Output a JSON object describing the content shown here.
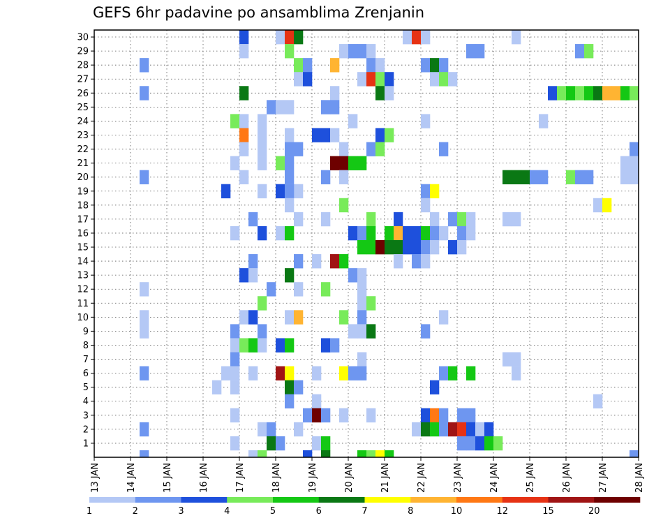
{
  "chart_data": {
    "type": "heatmap",
    "title": "GEFS 6hr padavine po ansamblima Zrenjanin",
    "xlabel": "",
    "ylabel": "",
    "x_tick_labels": [
      "13 JAN",
      "14 JAN",
      "15 JAN",
      "16 JAN",
      "17 JAN",
      "18 JAN",
      "19 JAN",
      "20 JAN",
      "21 JAN",
      "22 JAN",
      "23 JAN",
      "24 JAN",
      "25 JAN",
      "26 JAN",
      "27 JAN",
      "28 JAN"
    ],
    "y_tick_labels": [
      "1",
      "2",
      "3",
      "4",
      "5",
      "6",
      "7",
      "8",
      "9",
      "10",
      "11",
      "12",
      "13",
      "14",
      "15",
      "16",
      "17",
      "18",
      "19",
      "20",
      "21",
      "22",
      "23",
      "24",
      "25",
      "26",
      "27",
      "28",
      "29",
      "30"
    ],
    "time_steps_per_day": 4,
    "members": 30,
    "colorbar": {
      "labels": [
        "1",
        "2",
        "3",
        "4",
        "5",
        "6",
        "7",
        "8",
        "10",
        "12",
        "15",
        "20"
      ],
      "colors": [
        "#b4c8f5",
        "#6e96f0",
        "#1e50dc",
        "#78eb5a",
        "#14c814",
        "#0a7814",
        "#ffff00",
        "#ffb432",
        "#ff7814",
        "#e63214",
        "#a01414",
        "#6e0000"
      ]
    },
    "cells": [
      [
        17,
        30,
        3
      ],
      [
        18,
        30,
        1
      ],
      [
        18.25,
        30,
        10
      ],
      [
        18.5,
        30,
        6
      ],
      [
        21.5,
        30,
        1
      ],
      [
        21.75,
        30,
        10
      ],
      [
        22,
        30,
        1
      ],
      [
        24.5,
        30,
        1
      ],
      [
        17,
        29,
        1
      ],
      [
        18.25,
        29,
        4
      ],
      [
        19.75,
        29,
        1
      ],
      [
        20,
        29,
        2
      ],
      [
        20.25,
        29,
        2
      ],
      [
        20.5,
        29,
        1
      ],
      [
        23.25,
        29,
        2
      ],
      [
        23.5,
        29,
        2
      ],
      [
        26.25,
        29,
        2
      ],
      [
        26.5,
        29,
        4
      ],
      [
        14.25,
        28,
        2
      ],
      [
        18.5,
        28,
        4
      ],
      [
        18.75,
        28,
        2
      ],
      [
        19.5,
        28,
        8
      ],
      [
        20.5,
        28,
        2
      ],
      [
        20.75,
        28,
        1
      ],
      [
        22,
        28,
        2
      ],
      [
        22.25,
        28,
        6
      ],
      [
        22.5,
        28,
        2
      ],
      [
        18.5,
        27,
        1
      ],
      [
        18.75,
        27,
        3
      ],
      [
        20.25,
        27,
        1
      ],
      [
        20.5,
        27,
        10
      ],
      [
        20.75,
        27,
        4
      ],
      [
        21,
        27,
        3
      ],
      [
        22.25,
        27,
        1
      ],
      [
        22.5,
        27,
        4
      ],
      [
        22.75,
        27,
        1
      ],
      [
        14.25,
        26,
        2
      ],
      [
        17,
        26,
        6
      ],
      [
        19.5,
        26,
        1
      ],
      [
        20.75,
        26,
        6
      ],
      [
        21,
        26,
        1
      ],
      [
        25.5,
        26,
        3
      ],
      [
        25.75,
        26,
        4
      ],
      [
        26,
        26,
        5
      ],
      [
        26.25,
        26,
        4
      ],
      [
        26.5,
        26,
        5
      ],
      [
        26.75,
        26,
        6
      ],
      [
        27,
        26,
        8
      ],
      [
        27.25,
        26,
        8
      ],
      [
        27.5,
        26,
        5
      ],
      [
        27.75,
        26,
        4
      ],
      [
        28,
        26,
        11
      ],
      [
        17.75,
        25,
        2
      ],
      [
        18,
        25,
        1
      ],
      [
        18.25,
        25,
        1
      ],
      [
        19.25,
        25,
        2
      ],
      [
        19.5,
        25,
        2
      ],
      [
        16.75,
        24,
        4
      ],
      [
        17,
        24,
        1
      ],
      [
        17.5,
        24,
        1
      ],
      [
        20,
        24,
        1
      ],
      [
        22,
        24,
        1
      ],
      [
        25.25,
        24,
        1
      ],
      [
        17,
        23,
        9
      ],
      [
        17.5,
        23,
        1
      ],
      [
        18.25,
        23,
        1
      ],
      [
        19,
        23,
        3
      ],
      [
        19.25,
        23,
        3
      ],
      [
        19.5,
        23,
        1
      ],
      [
        20.75,
        23,
        3
      ],
      [
        21,
        23,
        4
      ],
      [
        17,
        22,
        1
      ],
      [
        17.5,
        22,
        1
      ],
      [
        18.25,
        22,
        2
      ],
      [
        18.5,
        22,
        2
      ],
      [
        19.75,
        22,
        1
      ],
      [
        20.5,
        22,
        2
      ],
      [
        20.75,
        22,
        4
      ],
      [
        22.5,
        22,
        2
      ],
      [
        27.75,
        22,
        2
      ],
      [
        28,
        22,
        6
      ],
      [
        28.25,
        22,
        1
      ],
      [
        16.75,
        21,
        1
      ],
      [
        17.5,
        21,
        1
      ],
      [
        18,
        21,
        4
      ],
      [
        18.25,
        21,
        2
      ],
      [
        19.5,
        21,
        12
      ],
      [
        19.75,
        21,
        12
      ],
      [
        20,
        21,
        5
      ],
      [
        20.25,
        21,
        5
      ],
      [
        27.5,
        21,
        1
      ],
      [
        27.75,
        21,
        1
      ],
      [
        28.25,
        21,
        1
      ],
      [
        14.25,
        20,
        2
      ],
      [
        17,
        20,
        1
      ],
      [
        18.25,
        20,
        2
      ],
      [
        19.25,
        20,
        2
      ],
      [
        19.75,
        20,
        1
      ],
      [
        24.25,
        20,
        6
      ],
      [
        24.5,
        20,
        6
      ],
      [
        24.75,
        20,
        6
      ],
      [
        25,
        20,
        2
      ],
      [
        25.25,
        20,
        2
      ],
      [
        26,
        20,
        4
      ],
      [
        26.25,
        20,
        2
      ],
      [
        26.5,
        20,
        2
      ],
      [
        27.5,
        20,
        1
      ],
      [
        27.75,
        20,
        1
      ],
      [
        16.5,
        19,
        3
      ],
      [
        17.5,
        19,
        1
      ],
      [
        18,
        19,
        3
      ],
      [
        18.25,
        19,
        1
      ],
      [
        18.5,
        19,
        1
      ],
      [
        18.25,
        19.01,
        2
      ],
      [
        22,
        19,
        2
      ],
      [
        22.25,
        19,
        7
      ],
      [
        18.25,
        18,
        1
      ],
      [
        19.75,
        18,
        4
      ],
      [
        22,
        18,
        1
      ],
      [
        26.75,
        18,
        1
      ],
      [
        27,
        18,
        7
      ],
      [
        28,
        18,
        1
      ],
      [
        28.25,
        18,
        1
      ],
      [
        17.25,
        17,
        2
      ],
      [
        18.5,
        17,
        1
      ],
      [
        19.25,
        17,
        1
      ],
      [
        20.5,
        17,
        4
      ],
      [
        21.25,
        17,
        3
      ],
      [
        22.25,
        17,
        1
      ],
      [
        22.75,
        17,
        2
      ],
      [
        23,
        17,
        4
      ],
      [
        23.25,
        17,
        1
      ],
      [
        24.25,
        17,
        1
      ],
      [
        24.5,
        17,
        1
      ],
      [
        16.75,
        16,
        1
      ],
      [
        17.5,
        16,
        3
      ],
      [
        18,
        16,
        1
      ],
      [
        18.25,
        16,
        5
      ],
      [
        20,
        16,
        3
      ],
      [
        20.25,
        16,
        2
      ],
      [
        20.5,
        16,
        5
      ],
      [
        21,
        16,
        5
      ],
      [
        21.25,
        16,
        8
      ],
      [
        21.5,
        16,
        3
      ],
      [
        21.75,
        16,
        3
      ],
      [
        22,
        16,
        5
      ],
      [
        22.25,
        16,
        2
      ],
      [
        22.5,
        16,
        1
      ],
      [
        23,
        16,
        2
      ],
      [
        23.25,
        16,
        1
      ],
      [
        20.25,
        15,
        5
      ],
      [
        20.5,
        15,
        5
      ],
      [
        20.75,
        15,
        12
      ],
      [
        21,
        15,
        6
      ],
      [
        21.25,
        15,
        6
      ],
      [
        21.5,
        15,
        3
      ],
      [
        21.75,
        15,
        3
      ],
      [
        22,
        15,
        2
      ],
      [
        22.25,
        15,
        1
      ],
      [
        22.75,
        15,
        3
      ],
      [
        23,
        15,
        1
      ],
      [
        17.25,
        14,
        2
      ],
      [
        18.5,
        14,
        2
      ],
      [
        19,
        14,
        1
      ],
      [
        19.5,
        14,
        11
      ],
      [
        19.75,
        14,
        5
      ],
      [
        21.25,
        14,
        1
      ],
      [
        21.75,
        14,
        2
      ],
      [
        22,
        14,
        1
      ],
      [
        17,
        13,
        3
      ],
      [
        17.25,
        13,
        1
      ],
      [
        18.25,
        13,
        6
      ],
      [
        20,
        13,
        2
      ],
      [
        20.25,
        13,
        1
      ],
      [
        14.25,
        12,
        1
      ],
      [
        17.75,
        12,
        2
      ],
      [
        18.5,
        12,
        1
      ],
      [
        19.25,
        12,
        4
      ],
      [
        20.25,
        12,
        1
      ],
      [
        17.5,
        11,
        4
      ],
      [
        20.25,
        11,
        1
      ],
      [
        20.5,
        11,
        4
      ],
      [
        14.25,
        10,
        1
      ],
      [
        17,
        10,
        1
      ],
      [
        17.25,
        10,
        3
      ],
      [
        18.25,
        10,
        1
      ],
      [
        18.5,
        10,
        8
      ],
      [
        19.75,
        10,
        4
      ],
      [
        20.25,
        10,
        2
      ],
      [
        22.5,
        10,
        1
      ],
      [
        14.25,
        9,
        1
      ],
      [
        16.75,
        9,
        2
      ],
      [
        17.5,
        9,
        2
      ],
      [
        20,
        9,
        1
      ],
      [
        20.25,
        9,
        1
      ],
      [
        20.5,
        9,
        6
      ],
      [
        22,
        9,
        2
      ],
      [
        16.75,
        8,
        1
      ],
      [
        17,
        8,
        4
      ],
      [
        17.25,
        8,
        5
      ],
      [
        17.5,
        8,
        1
      ],
      [
        18,
        8,
        3
      ],
      [
        18.25,
        8,
        5
      ],
      [
        19.25,
        8,
        3
      ],
      [
        19.5,
        8,
        2
      ],
      [
        16.75,
        7,
        2
      ],
      [
        20.25,
        7,
        1
      ],
      [
        24.25,
        7,
        1
      ],
      [
        24.5,
        7,
        1
      ],
      [
        14.25,
        6,
        2
      ],
      [
        16.5,
        6,
        1
      ],
      [
        16.75,
        6,
        1
      ],
      [
        17.25,
        6,
        1
      ],
      [
        18,
        6,
        11
      ],
      [
        18.25,
        6,
        7
      ],
      [
        19,
        6,
        1
      ],
      [
        19.75,
        6,
        7
      ],
      [
        20,
        6,
        2
      ],
      [
        20.25,
        6,
        2
      ],
      [
        22.5,
        6,
        2
      ],
      [
        22.75,
        6,
        5
      ],
      [
        23.25,
        6,
        5
      ],
      [
        24.5,
        6,
        1
      ],
      [
        16.25,
        5,
        1
      ],
      [
        16.75,
        5,
        1
      ],
      [
        18.25,
        5,
        6
      ],
      [
        18.5,
        5,
        2
      ],
      [
        22.25,
        5,
        3
      ],
      [
        18.25,
        4,
        2
      ],
      [
        19,
        4,
        1
      ],
      [
        26.75,
        4,
        1
      ],
      [
        16.75,
        3,
        1
      ],
      [
        18.75,
        3,
        2
      ],
      [
        19,
        3,
        12
      ],
      [
        19.25,
        3,
        2
      ],
      [
        19.75,
        3,
        1
      ],
      [
        20.5,
        3,
        1
      ],
      [
        22,
        3,
        3
      ],
      [
        22.25,
        3,
        9
      ],
      [
        22.5,
        3,
        2
      ],
      [
        23,
        3,
        2
      ],
      [
        23.25,
        3,
        2
      ],
      [
        14.25,
        2,
        2
      ],
      [
        17.5,
        2,
        1
      ],
      [
        17.75,
        2,
        2
      ],
      [
        18.5,
        2,
        1
      ],
      [
        21.75,
        2,
        1
      ],
      [
        22,
        2,
        6
      ],
      [
        22.25,
        2,
        5
      ],
      [
        22.5,
        2,
        2
      ],
      [
        22.75,
        2,
        11
      ],
      [
        23,
        2,
        10
      ],
      [
        23.25,
        2,
        3
      ],
      [
        23.5,
        2,
        1
      ],
      [
        23.75,
        2,
        3
      ],
      [
        16.75,
        1,
        1
      ],
      [
        17.75,
        1,
        6
      ],
      [
        18,
        1,
        2
      ],
      [
        19,
        1,
        1
      ],
      [
        19.25,
        1,
        5
      ],
      [
        23,
        1,
        2
      ],
      [
        23.25,
        1,
        2
      ],
      [
        23.5,
        1,
        3
      ],
      [
        23.75,
        1,
        5
      ],
      [
        24,
        1,
        4
      ],
      [
        28.25,
        1,
        1
      ],
      [
        14.25,
        0,
        2
      ],
      [
        17.25,
        0,
        1
      ],
      [
        17.5,
        0,
        4
      ],
      [
        18.75,
        0,
        3
      ],
      [
        19.25,
        0,
        6
      ],
      [
        20.25,
        0,
        5
      ],
      [
        20.5,
        0,
        4
      ],
      [
        20.75,
        0,
        7
      ],
      [
        21,
        0,
        5
      ],
      [
        27.75,
        0,
        2
      ]
    ]
  }
}
